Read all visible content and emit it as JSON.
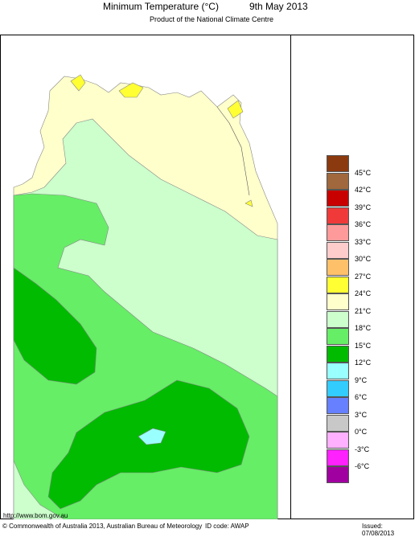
{
  "header": {
    "title": "Minimum Temperature (°C)",
    "date": "9th May 2013",
    "subtitle": "Product of the National Climate Centre"
  },
  "legend": {
    "labels": [
      "45°C",
      "42°C",
      "39°C",
      "36°C",
      "33°C",
      "30°C",
      "27°C",
      "24°C",
      "21°C",
      "18°C",
      "15°C",
      "12°C",
      "9°C",
      "6°C",
      "3°C",
      "0°C",
      "-3°C",
      "-6°C"
    ],
    "colors": [
      "#8B3A0F",
      "#A0683C",
      "#C80000",
      "#F03A3A",
      "#FF9A9A",
      "#FFCCCC",
      "#FFC06A",
      "#FFFF33",
      "#FFFFCC",
      "#CCFFCC",
      "#66EE66",
      "#00BB00",
      "#99FFFF",
      "#33CCFF",
      "#6680FF",
      "#C8C8C8",
      "#FFB0FF",
      "#FF22FF",
      "#A000A0"
    ]
  },
  "footer": {
    "url": "http://www.bom.gov.au",
    "copyright": "© Commonwealth of Australia 2013, Australian Bureau of Meteorology",
    "id_code": "ID code: AWAP",
    "issued": "Issued: 07/08/2013"
  },
  "map_colors": {
    "ocean": "#ffffff",
    "band_24": "#FFFFCC",
    "band_21": "#CCFFCC",
    "band_18": "#66EE66",
    "band_15": "#00BB00",
    "band_12": "#99FFFF",
    "band_27": "#FFFF33"
  }
}
